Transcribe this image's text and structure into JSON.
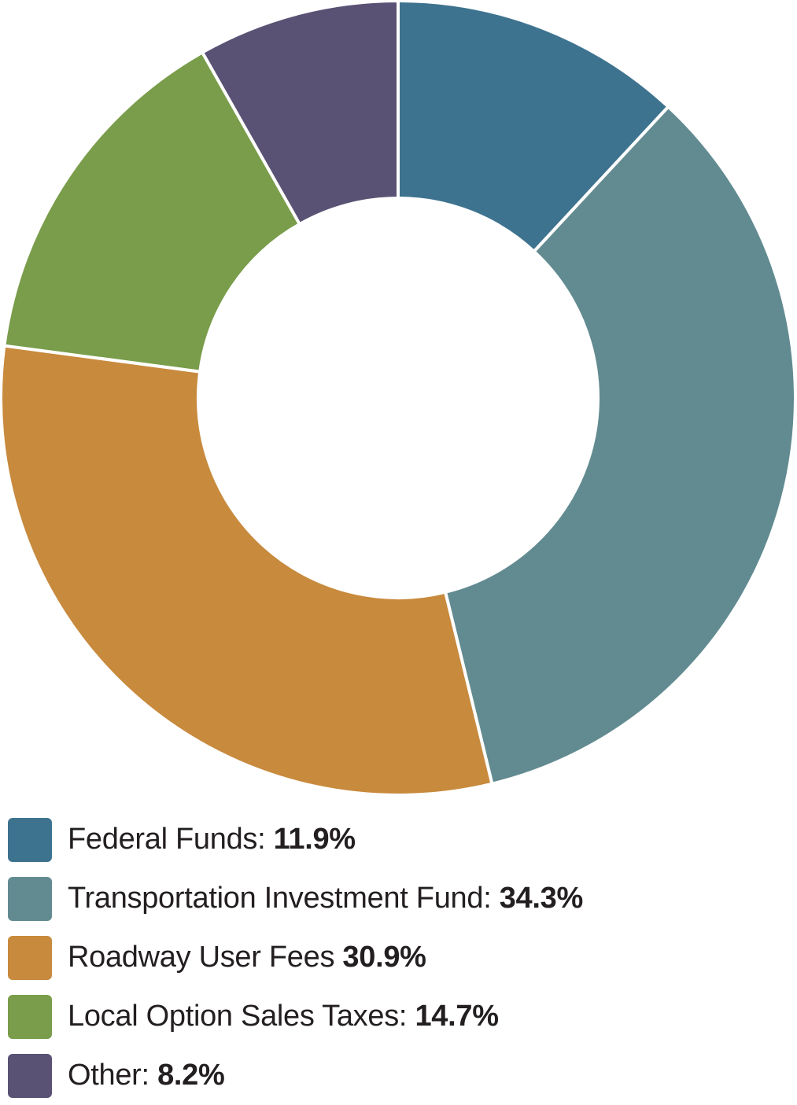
{
  "chart_data": {
    "type": "pie",
    "title": "",
    "start_angle_deg": 0,
    "slices": [
      {
        "name": "Federal Funds",
        "separator": ": ",
        "value": 11.9,
        "display": "11.9%",
        "color": "#3e738f"
      },
      {
        "name": "Transportation Investment Fund",
        "separator": ": ",
        "value": 34.3,
        "display": "34.3%",
        "color": "#628b91"
      },
      {
        "name": "Roadway User Fees",
        "separator": " ",
        "value": 30.9,
        "display": "30.9%",
        "color": "#c88a3d"
      },
      {
        "name": "Local Option Sales Taxes",
        "separator": ": ",
        "value": 14.7,
        "display": "14.7%",
        "color": "#799d4a"
      },
      {
        "name": "Other",
        "separator": ": ",
        "value": 8.2,
        "display": "8.2%",
        "color": "#5a5274"
      }
    ]
  }
}
